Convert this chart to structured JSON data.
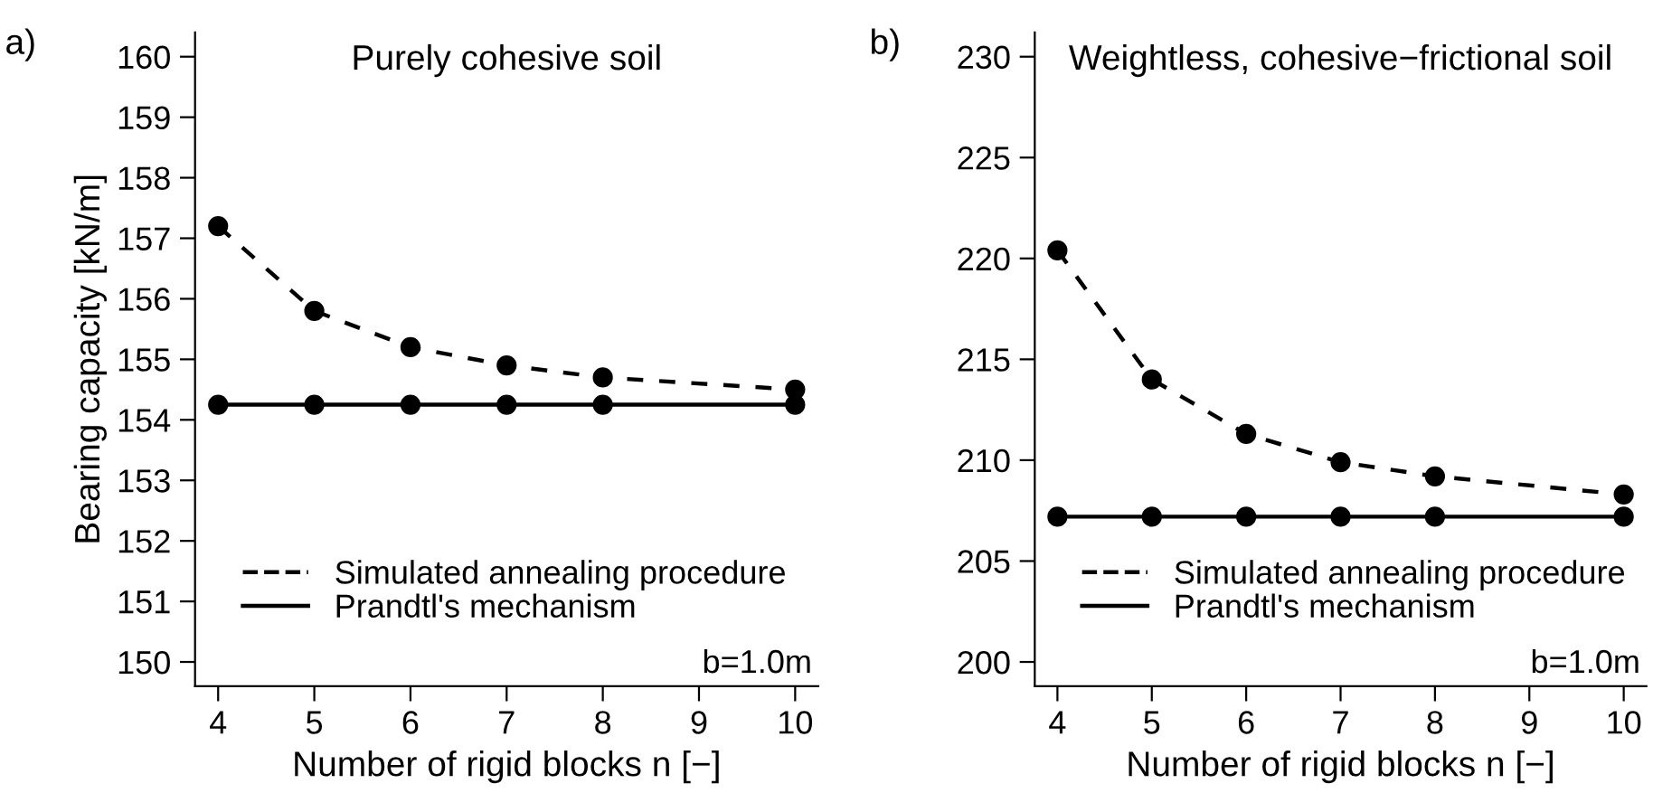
{
  "chart_data": [
    {
      "type": "line",
      "title": "Purely cohesive soil",
      "xlabel": "Number of rigid blocks n [−]",
      "ylabel": "Bearing capacity [kN/m]",
      "x": [
        4,
        5,
        6,
        7,
        8,
        10
      ],
      "series": [
        {
          "name": "Simulated annealing procedure",
          "color": "#000000",
          "line_style": "dashed",
          "values": [
            157.2,
            155.8,
            155.2,
            154.9,
            154.7,
            154.5
          ]
        },
        {
          "name": "Prandtl's mechanism",
          "color": "#000000",
          "line_style": "solid",
          "values": [
            154.25,
            154.25,
            154.25,
            154.25,
            154.25,
            154.25
          ]
        }
      ],
      "marker": "circle",
      "legend": "bottom left",
      "grid": false,
      "xlim": [
        3.76,
        10.24
      ],
      "xticks": [
        4,
        5,
        6,
        7,
        8,
        9,
        10
      ],
      "ylim": [
        149.6,
        160.4
      ],
      "yticks": [
        150,
        151,
        152,
        153,
        154,
        155,
        156,
        157,
        158,
        159,
        160
      ],
      "annotations": [
        "a)",
        "b=1.0m"
      ]
    },
    {
      "type": "line",
      "title": "Weightless, cohesive−frictional soil",
      "xlabel": "Number of rigid blocks n [−]",
      "x": [
        4,
        5,
        6,
        7,
        8,
        10
      ],
      "series": [
        {
          "name": "Simulated annealing procedure",
          "color": "#000000",
          "line_style": "dashed",
          "values": [
            220.4,
            214.0,
            211.3,
            209.9,
            209.2,
            208.3
          ]
        },
        {
          "name": "Prandtl's mechanism",
          "color": "#000000",
          "line_style": "solid",
          "values": [
            207.2,
            207.2,
            207.2,
            207.2,
            207.2,
            207.2
          ]
        }
      ],
      "marker": "circle",
      "legend": "bottom left",
      "grid": false,
      "xlim": [
        3.76,
        10.24
      ],
      "xticks": [
        4,
        5,
        6,
        7,
        8,
        9,
        10
      ],
      "ylim": [
        198.8,
        231.2
      ],
      "yticks": [
        200,
        205,
        210,
        215,
        220,
        225,
        230
      ],
      "annotations": [
        "b)",
        "b=1.0m"
      ]
    }
  ]
}
